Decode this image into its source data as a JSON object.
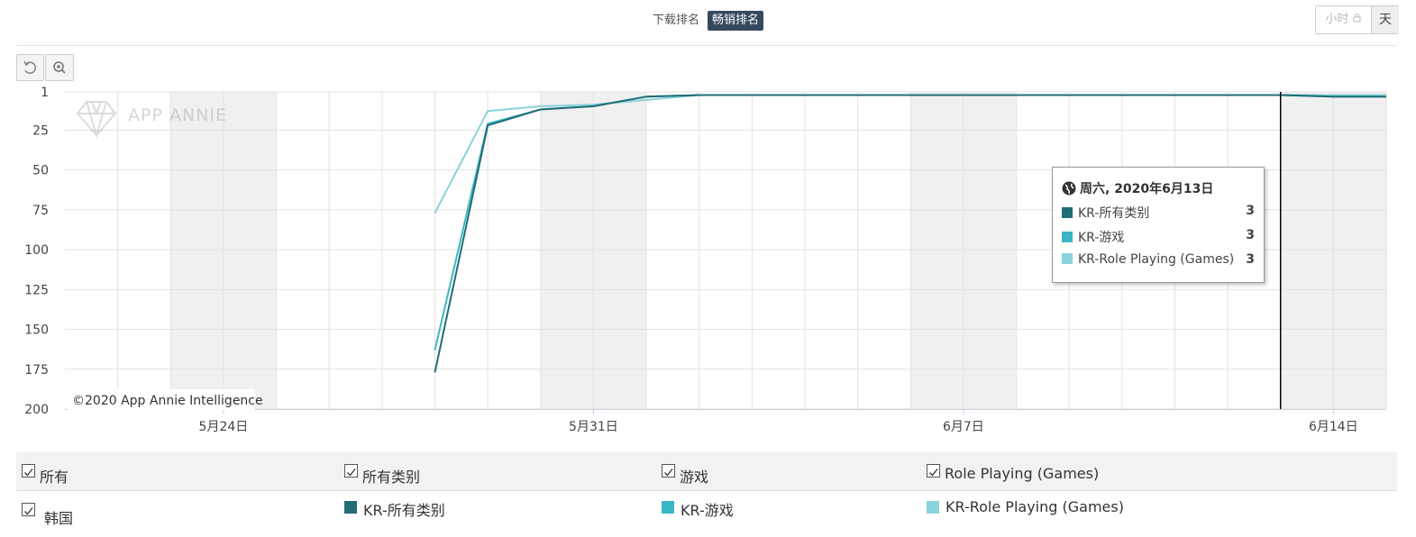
{
  "tabs": [
    "下载排名",
    "畅销排名"
  ],
  "granularity": [
    "小时",
    "天"
  ],
  "watermark": "APP ANNIE",
  "credit": "©2020 App Annie Intelligence",
  "tooltip": {
    "title": "周六, 2020年6月13日"
  },
  "filters": {
    "row1": [
      "所有",
      "所有类别",
      "游戏",
      "Role Playing (Games)"
    ],
    "country": "韩国"
  },
  "chart_data": {
    "type": "line",
    "y_inverted": true,
    "grid": true,
    "x": [
      "2020-05-28",
      "2020-05-29",
      "2020-05-30",
      "2020-05-31",
      "2020-06-01",
      "2020-06-02",
      "2020-06-03",
      "2020-06-04",
      "2020-06-05",
      "2020-06-06",
      "2020-06-07",
      "2020-06-08",
      "2020-06-09",
      "2020-06-10",
      "2020-06-11",
      "2020-06-12",
      "2020-06-13",
      "2020-06-14",
      "2020-06-15"
    ],
    "xlim": [
      "2020-05-21",
      "2020-06-15"
    ],
    "xticks": [
      {
        "value": "2020-05-24",
        "label": "5月24日"
      },
      {
        "value": "2020-05-31",
        "label": "5月31日"
      },
      {
        "value": "2020-06-07",
        "label": "6月7日"
      },
      {
        "value": "2020-06-14",
        "label": "6月14日"
      }
    ],
    "ylim": [
      1,
      200
    ],
    "yticks": [
      1,
      25,
      50,
      75,
      100,
      125,
      150,
      175,
      200
    ],
    "series": [
      {
        "name": "KR-所有类别",
        "color": "#226d77",
        "values": [
          177,
          22,
          12,
          10,
          4,
          3,
          3,
          3,
          3,
          3,
          3,
          3,
          3,
          3,
          3,
          3,
          3,
          4,
          4
        ]
      },
      {
        "name": "KR-游戏",
        "color": "#3ab7c6",
        "values": [
          163,
          21,
          12,
          10,
          4,
          3,
          3,
          3,
          3,
          3,
          3,
          3,
          3,
          3,
          3,
          3,
          3,
          4,
          4
        ]
      },
      {
        "name": "KR-Role Playing (Games)",
        "color": "#8ad3dc",
        "values": [
          77,
          13,
          10,
          9,
          6,
          3,
          3,
          3,
          3,
          3,
          3,
          3,
          3,
          3,
          3,
          3,
          3,
          3,
          3
        ]
      }
    ]
  }
}
